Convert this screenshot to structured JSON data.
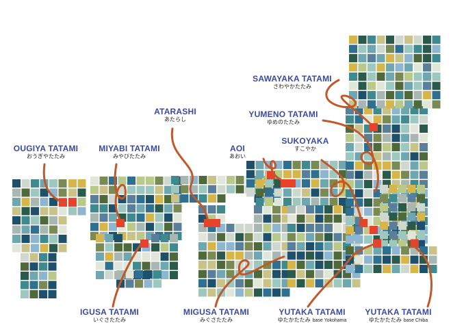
{
  "map": {
    "palette": [
      "#2f6f8f",
      "#6fa7b0",
      "#9cc8c0",
      "#c9c38a",
      "#d6b64a",
      "#7a8a55",
      "#4f6a3a",
      "#1e4f6b",
      "#a9b7b3",
      "#cfd8cf",
      "#3f8a8f",
      "#5a7f9a",
      "#2a5a4a",
      "#b8c98a",
      "#e0e6d8",
      "#8fb6d0"
    ],
    "highlight_color": "#e8412c",
    "curve_color": "#c0582a"
  },
  "labels": [
    {
      "id": "ougiya",
      "name": "OUGIYA TATAMI",
      "kana": "おうぎやたたみ"
    },
    {
      "id": "miyabi",
      "name": "MIYABI TATAMI",
      "kana": "みやびたたみ"
    },
    {
      "id": "atarashi",
      "name": "ATARASHI",
      "kana": "あたらし"
    },
    {
      "id": "aoi",
      "name": "AOI",
      "kana": "あおい"
    },
    {
      "id": "sukoyaka",
      "name": "SUKOYAKA",
      "kana": "すこやか"
    },
    {
      "id": "yumeno",
      "name": "YUMENO TATAMI",
      "kana": "ゆめのたたみ"
    },
    {
      "id": "sawayaka",
      "name": "SAWAYAKA TATAMI",
      "kana": "さわやかたたみ"
    },
    {
      "id": "igusa",
      "name": "IGUSA TATAMI",
      "kana": "いぐさたたみ"
    },
    {
      "id": "migusa",
      "name": "MIGUSA TATAMI",
      "kana": "みぐさたたみ"
    },
    {
      "id": "yutaka-yokohama",
      "name": "YUTAKA TATAMI",
      "kana": "ゆたかたたみ",
      "note": "base Yokohama"
    },
    {
      "id": "yutaka-chiba",
      "name": "YUTAKA TATAMI",
      "kana": "ゆたかたたみ",
      "note": "base Chiba"
    }
  ]
}
